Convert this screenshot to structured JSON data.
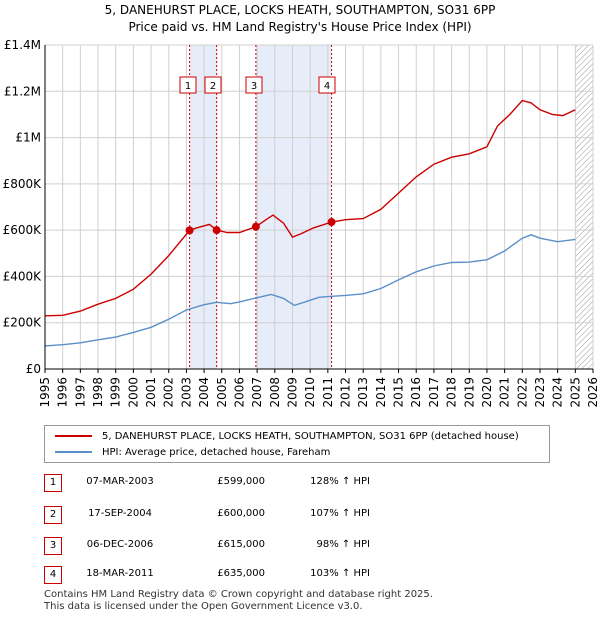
{
  "title_line1": "5, DANEHURST PLACE, LOCKS HEATH, SOUTHAMPTON, SO31 6PP",
  "title_line2": "Price paid vs. HM Land Registry's House Price Index (HPI)",
  "legend": {
    "property_label": "5, DANEHURST PLACE, LOCKS HEATH, SOUTHAMPTON, SO31 6PP (detached house)",
    "hpi_label": "HPI: Average price, detached house, Fareham"
  },
  "colors": {
    "property": "#cc0000",
    "hpi": "#5b8fc9",
    "shade": "#e6ecf8"
  },
  "chart_data": {
    "type": "line",
    "x_range": [
      1995,
      2026
    ],
    "y_range": [
      0,
      1400000
    ],
    "y_ticks": [
      0,
      200000,
      400000,
      600000,
      800000,
      1000000,
      1200000,
      1400000
    ],
    "y_tick_labels": [
      "£0",
      "£200K",
      "£400K",
      "£600K",
      "£800K",
      "£1M",
      "£1.2M",
      "£1.4M"
    ],
    "x_ticks": [
      "1995",
      "1996",
      "1997",
      "1998",
      "1999",
      "2000",
      "2001",
      "2002",
      "2003",
      "2004",
      "2005",
      "2006",
      "2007",
      "2008",
      "2009",
      "2010",
      "2011",
      "2012",
      "2013",
      "2014",
      "2015",
      "2016",
      "2017",
      "2018",
      "2019",
      "2020",
      "2021",
      "2022",
      "2023",
      "2024",
      "2025",
      "2026"
    ],
    "shaded_ranges": [
      [
        2003.18,
        2004.71
      ],
      [
        2006.93,
        2011.21
      ]
    ],
    "hatched_from": 2025.0,
    "series": [
      {
        "name": "5, DANEHURST PLACE, LOCKS HEATH, SOUTHAMPTON, SO31 6PP (detached house)",
        "points": [
          [
            1995,
            230000
          ],
          [
            1996,
            232000
          ],
          [
            1997,
            250000
          ],
          [
            1998,
            280000
          ],
          [
            1999,
            305000
          ],
          [
            2000,
            345000
          ],
          [
            2001,
            410000
          ],
          [
            2002,
            490000
          ],
          [
            2003.18,
            599000
          ],
          [
            2003.6,
            610000
          ],
          [
            2004.3,
            625000
          ],
          [
            2004.71,
            600000
          ],
          [
            2005.3,
            590000
          ],
          [
            2006,
            590000
          ],
          [
            2006.93,
            615000
          ],
          [
            2007.5,
            645000
          ],
          [
            2007.9,
            665000
          ],
          [
            2008.5,
            630000
          ],
          [
            2009.0,
            570000
          ],
          [
            2009.5,
            585000
          ],
          [
            2010.2,
            610000
          ],
          [
            2010.8,
            625000
          ],
          [
            2011.21,
            635000
          ],
          [
            2012,
            645000
          ],
          [
            2013,
            650000
          ],
          [
            2014,
            690000
          ],
          [
            2015,
            760000
          ],
          [
            2016,
            830000
          ],
          [
            2017,
            885000
          ],
          [
            2018,
            915000
          ],
          [
            2019,
            930000
          ],
          [
            2020,
            960000
          ],
          [
            2020.6,
            1050000
          ],
          [
            2021.3,
            1100000
          ],
          [
            2022.0,
            1160000
          ],
          [
            2022.5,
            1150000
          ],
          [
            2023,
            1120000
          ],
          [
            2023.7,
            1100000
          ],
          [
            2024.3,
            1095000
          ],
          [
            2025,
            1120000
          ]
        ]
      },
      {
        "name": "HPI: Average price, detached house, Fareham",
        "points": [
          [
            1995,
            100000
          ],
          [
            1996,
            105000
          ],
          [
            1997,
            113000
          ],
          [
            1998,
            126000
          ],
          [
            1999,
            138000
          ],
          [
            2000,
            158000
          ],
          [
            2001,
            180000
          ],
          [
            2002,
            215000
          ],
          [
            2003,
            255000
          ],
          [
            2004,
            278000
          ],
          [
            2004.7,
            288000
          ],
          [
            2005.5,
            282000
          ],
          [
            2006,
            290000
          ],
          [
            2007,
            308000
          ],
          [
            2007.8,
            322000
          ],
          [
            2008.5,
            305000
          ],
          [
            2009.1,
            275000
          ],
          [
            2009.8,
            292000
          ],
          [
            2010.5,
            310000
          ],
          [
            2011,
            313000
          ],
          [
            2012,
            318000
          ],
          [
            2013,
            325000
          ],
          [
            2014,
            348000
          ],
          [
            2015,
            385000
          ],
          [
            2016,
            420000
          ],
          [
            2017,
            445000
          ],
          [
            2018,
            460000
          ],
          [
            2019,
            462000
          ],
          [
            2020,
            472000
          ],
          [
            2021,
            510000
          ],
          [
            2022,
            565000
          ],
          [
            2022.5,
            580000
          ],
          [
            2023,
            565000
          ],
          [
            2024,
            550000
          ],
          [
            2025,
            560000
          ]
        ]
      }
    ],
    "sales": [
      {
        "num": "1",
        "x": 2003.18,
        "price": 599000
      },
      {
        "num": "2",
        "x": 2004.71,
        "price": 600000
      },
      {
        "num": "3",
        "x": 2006.93,
        "price": 615000
      },
      {
        "num": "4",
        "x": 2011.21,
        "price": 635000
      }
    ]
  },
  "transactions": [
    {
      "num": "1",
      "date": "07-MAR-2003",
      "price": "£599,000",
      "hpi": "128% ↑ HPI"
    },
    {
      "num": "2",
      "date": "17-SEP-2004",
      "price": "£600,000",
      "hpi": "107% ↑ HPI"
    },
    {
      "num": "3",
      "date": "06-DEC-2006",
      "price": "£615,000",
      "hpi": "98% ↑ HPI"
    },
    {
      "num": "4",
      "date": "18-MAR-2011",
      "price": "£635,000",
      "hpi": "103% ↑ HPI"
    }
  ],
  "footer_line1": "Contains HM Land Registry data © Crown copyright and database right 2025.",
  "footer_line2": "This data is licensed under the Open Government Licence v3.0."
}
